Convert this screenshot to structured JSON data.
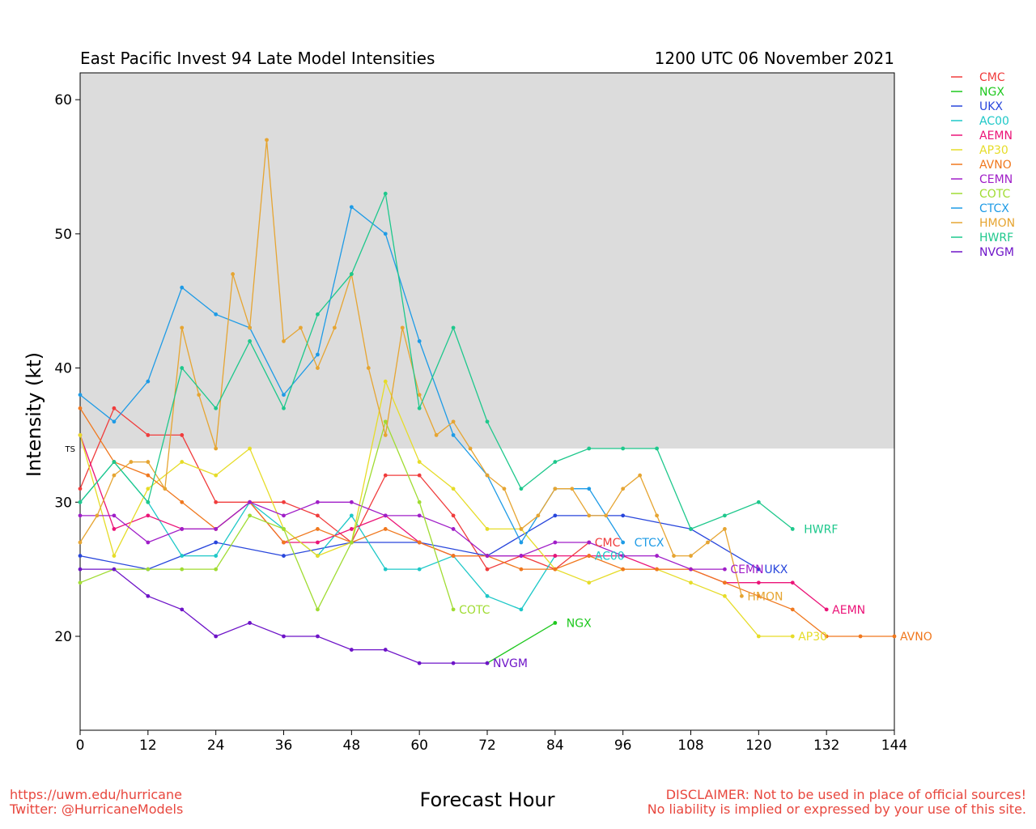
{
  "title_left": "East Pacific Invest 94 Late Model Intensities",
  "title_right": "1200 UTC 06 November 2021",
  "footer": {
    "url": "https://uwm.edu/hurricane",
    "twitter": "Twitter: @HurricaneModels",
    "disclaimer_line1": "DISCLAIMER: Not to be used in place of official sources!",
    "disclaimer_line2": "No liability is implied or expressed by your use of this site."
  },
  "chart_data": {
    "type": "line",
    "title": "East Pacific Invest 94 Late Model Intensities",
    "subtitle": "1200 UTC 06 November 2021",
    "xlabel": "Forecast Hour",
    "ylabel": "Intensity (kt)",
    "xlim": [
      0,
      144
    ],
    "ylim": [
      13,
      62
    ],
    "xticks": [
      0,
      12,
      24,
      36,
      48,
      60,
      72,
      84,
      96,
      108,
      120,
      132,
      144
    ],
    "yticks": [
      20,
      30,
      40,
      50,
      60
    ],
    "ts_threshold": 34,
    "ts_label": "TS",
    "shade_color": "#dcdcdc",
    "legend_position": "right",
    "series": [
      {
        "name": "CMC",
        "color": "#f03c3c",
        "label_x": 91,
        "label_y": 27,
        "x": [
          0,
          6,
          12,
          18,
          24,
          30,
          36,
          42,
          48,
          54,
          60,
          66,
          72,
          78,
          84,
          90
        ],
        "y": [
          31,
          37,
          35,
          35,
          30,
          30,
          30,
          29,
          27,
          32,
          32,
          29,
          25,
          26,
          25,
          27
        ]
      },
      {
        "name": "NGX",
        "color": "#1ec81e",
        "label_x": 86,
        "label_y": 21,
        "x": [
          72,
          84
        ],
        "y": [
          18,
          21
        ]
      },
      {
        "name": "UKX",
        "color": "#2846dc",
        "label_x": 121,
        "label_y": 25,
        "x": [
          0,
          12,
          24,
          36,
          48,
          60,
          72,
          84,
          96,
          108,
          120
        ],
        "y": [
          26,
          25,
          27,
          26,
          27,
          27,
          26,
          29,
          29,
          28,
          25
        ]
      },
      {
        "name": "AC00",
        "color": "#1ec8c8",
        "label_x": 91,
        "label_y": 26,
        "x": [
          0,
          6,
          12,
          18,
          24,
          30,
          36,
          42,
          48,
          54,
          60,
          66,
          72,
          78,
          84
        ],
        "y": [
          30,
          33,
          30,
          26,
          26,
          30,
          28,
          26,
          29,
          25,
          25,
          26,
          23,
          22,
          26
        ]
      },
      {
        "name": "AEMN",
        "color": "#eb1478",
        "label_x": 133,
        "label_y": 22,
        "x": [
          0,
          6,
          12,
          18,
          24,
          30,
          36,
          42,
          48,
          54,
          60,
          66,
          72,
          78,
          84,
          90,
          96,
          102,
          108,
          114,
          120,
          126,
          132
        ],
        "y": [
          35,
          28,
          29,
          28,
          28,
          30,
          27,
          27,
          28,
          29,
          27,
          26,
          26,
          26,
          26,
          26,
          26,
          25,
          25,
          24,
          24,
          24,
          22
        ]
      },
      {
        "name": "AP30",
        "color": "#e6dc28",
        "label_x": 127,
        "label_y": 20,
        "x": [
          0,
          6,
          12,
          18,
          24,
          30,
          36,
          42,
          48,
          54,
          60,
          66,
          72,
          78,
          84,
          90,
          96,
          102,
          108,
          114,
          120,
          126
        ],
        "y": [
          35,
          26,
          31,
          33,
          32,
          34,
          28,
          26,
          27,
          39,
          33,
          31,
          28,
          28,
          25,
          24,
          25,
          25,
          24,
          23,
          20,
          20
        ]
      },
      {
        "name": "AVNO",
        "color": "#f0781e",
        "label_x": 145,
        "label_y": 20,
        "x": [
          0,
          6,
          12,
          18,
          24,
          30,
          36,
          42,
          48,
          54,
          60,
          66,
          72,
          78,
          84,
          90,
          96,
          102,
          108,
          114,
          120,
          126,
          132,
          138,
          144
        ],
        "y": [
          37,
          33,
          32,
          30,
          28,
          30,
          27,
          28,
          27,
          28,
          27,
          26,
          26,
          25,
          25,
          26,
          25,
          25,
          25,
          24,
          23,
          22,
          20,
          20,
          20
        ]
      },
      {
        "name": "CEMN",
        "color": "#a01ec8",
        "label_x": 115,
        "label_y": 25,
        "x": [
          0,
          6,
          12,
          18,
          24,
          30,
          36,
          42,
          48,
          54,
          60,
          66,
          72,
          78,
          84,
          90,
          96,
          102,
          108,
          114
        ],
        "y": [
          29,
          29,
          27,
          28,
          28,
          30,
          29,
          30,
          30,
          29,
          29,
          28,
          26,
          26,
          27,
          27,
          26,
          26,
          25,
          25
        ]
      },
      {
        "name": "COTC",
        "color": "#a0dc32",
        "label_x": 67,
        "label_y": 22,
        "x": [
          0,
          6,
          12,
          18,
          24,
          30,
          36,
          42,
          48,
          54,
          60,
          66
        ],
        "y": [
          24,
          25,
          25,
          25,
          25,
          29,
          28,
          22,
          27,
          36,
          30,
          22
        ]
      },
      {
        "name": "CTCX",
        "color": "#1e9be6",
        "label_x": 98,
        "label_y": 27,
        "x": [
          0,
          6,
          12,
          18,
          24,
          30,
          36,
          42,
          48,
          54,
          60,
          66,
          72,
          78,
          84,
          90,
          96
        ],
        "y": [
          38,
          36,
          39,
          46,
          44,
          43,
          38,
          41,
          52,
          50,
          42,
          35,
          32,
          27,
          31,
          31,
          27
        ]
      },
      {
        "name": "HMON",
        "color": "#e6a532",
        "label_x": 118,
        "label_y": 23,
        "x": [
          0,
          3,
          6,
          9,
          12,
          15,
          18,
          21,
          24,
          27,
          30,
          33,
          36,
          39,
          42,
          45,
          48,
          51,
          54,
          57,
          60,
          63,
          66,
          69,
          72,
          75,
          78,
          81,
          84,
          87,
          90,
          93,
          96,
          99,
          102,
          105,
          108,
          111,
          114,
          117
        ],
        "y": [
          27,
          29,
          32,
          33,
          33,
          31,
          43,
          38,
          34,
          47,
          43,
          57,
          42,
          43,
          40,
          43,
          47,
          40,
          35,
          43,
          38,
          35,
          36,
          34,
          32,
          31,
          28,
          29,
          31,
          31,
          29,
          29,
          31,
          32,
          29,
          26,
          26,
          27,
          28,
          23
        ]
      },
      {
        "name": "HWRF",
        "color": "#1ec88c",
        "label_x": 128,
        "label_y": 28,
        "x": [
          0,
          6,
          12,
          18,
          24,
          30,
          36,
          42,
          48,
          54,
          60,
          66,
          72,
          78,
          84,
          90,
          96,
          102,
          108,
          114,
          120,
          126
        ],
        "y": [
          30,
          33,
          30,
          40,
          37,
          42,
          37,
          44,
          47,
          53,
          37,
          43,
          36,
          31,
          33,
          34,
          34,
          34,
          28,
          29,
          30,
          28
        ]
      },
      {
        "name": "NVGM",
        "color": "#6e14c8",
        "label_x": 73,
        "label_y": 18,
        "x": [
          0,
          6,
          12,
          18,
          24,
          30,
          36,
          42,
          48,
          54,
          60,
          66,
          72
        ],
        "y": [
          25,
          25,
          23,
          22,
          20,
          21,
          20,
          20,
          19,
          19,
          18,
          18,
          18
        ]
      }
    ]
  }
}
